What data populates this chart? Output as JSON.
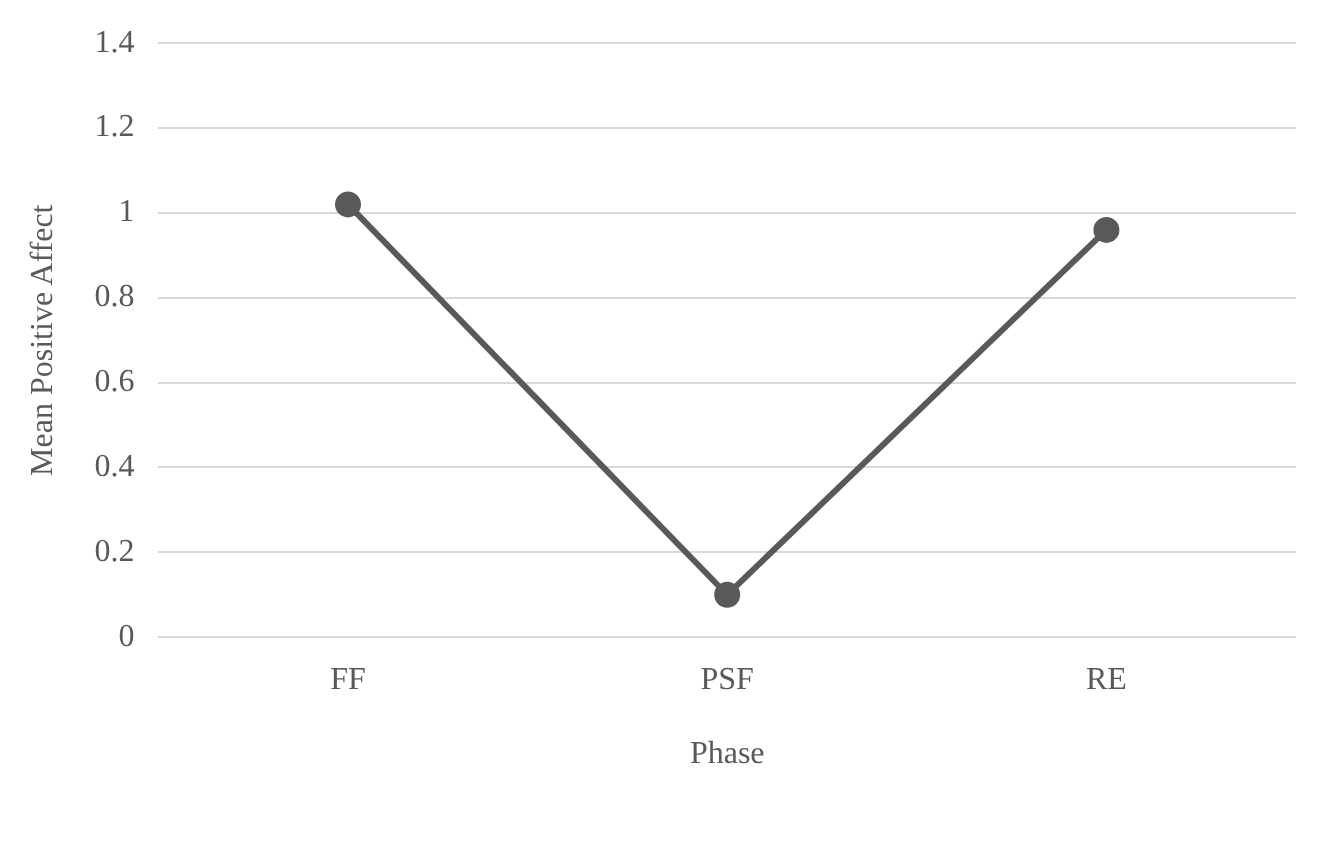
{
  "chart_data": {
    "type": "line",
    "xlabel": "Phase",
    "ylabel": "Mean Positive Affect",
    "categories": [
      "FF",
      "PSF",
      "RE"
    ],
    "series": [
      {
        "color": "#595959",
        "values": [
          1.02,
          0.1,
          0.96
        ]
      }
    ],
    "ylim": [
      0,
      1.4
    ],
    "yticks": [
      0,
      0.2,
      0.4,
      0.6,
      0.8,
      1,
      1.2,
      1.4
    ],
    "grid": "y",
    "legend": false,
    "marker": "circle",
    "line_style": "solid"
  }
}
